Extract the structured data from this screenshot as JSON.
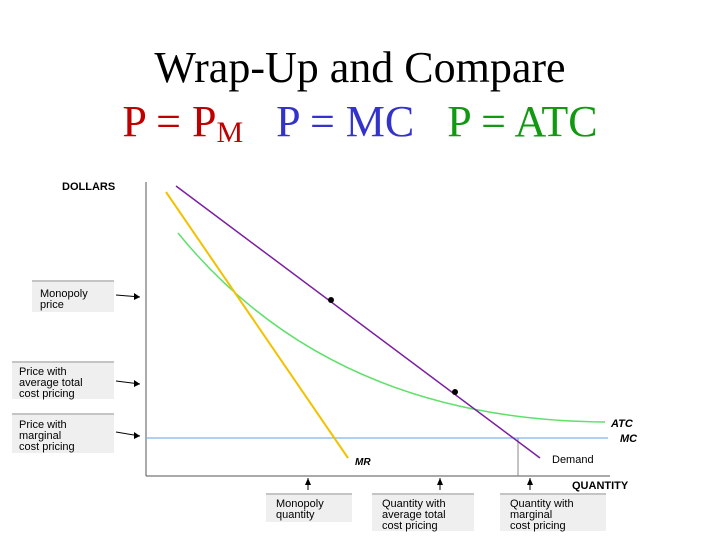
{
  "title": {
    "line1": "Wrap-Up and Compare",
    "pm_main": "P = P",
    "pm_sub": "M",
    "pmc": "P = MC",
    "patc": "P = ATC"
  },
  "axes": {
    "y_label": "DOLLARS",
    "x_label": "QUANTITY"
  },
  "curves": {
    "atc": "ATC",
    "mc": "MC",
    "mr": "MR",
    "demand": "Demand"
  },
  "price_boxes": {
    "monopoly": [
      "Monopoly",
      "price"
    ],
    "atc_pricing": [
      "Price with",
      "average total",
      "cost pricing"
    ],
    "mc_pricing": [
      "Price with",
      "marginal",
      "cost pricing"
    ]
  },
  "quantity_boxes": {
    "monopoly": [
      "Monopoly",
      "quantity"
    ],
    "atc_pricing": [
      "Quantity with",
      "average total",
      "cost pricing"
    ],
    "mc_pricing": [
      "Quantity with",
      "marginal",
      "cost pricing"
    ]
  },
  "colors": {
    "demand": "#7b1fa2",
    "mr": "#f2c200",
    "atc": "#5ee06a",
    "mc": "#7fb3e6",
    "title_pm": "#c00000",
    "title_pmc": "#3333cc",
    "title_patc": "#119911"
  }
}
